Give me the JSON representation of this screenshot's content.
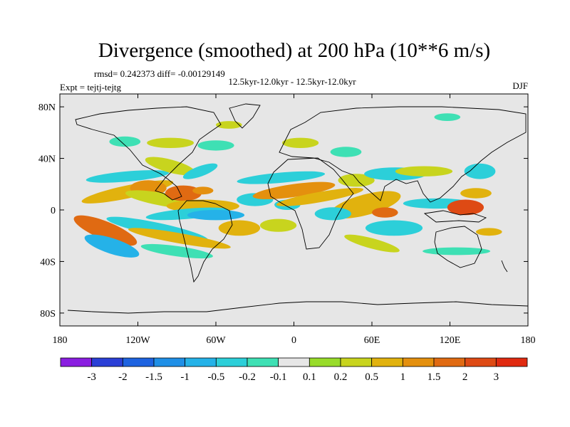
{
  "chart_data": {
    "type": "heatmap",
    "title": "Divergence (smoothed) at 200 hPa (10**6 m/s)",
    "stats": "rmsd= 0.242373 diff= -0.00129149",
    "periods": "12.5kyr-12.0kyr - 12.5kyr-12.0kyr",
    "experiment": "Expt = tejtj-tejtg",
    "season": "DJF",
    "x_ticks": [
      "180",
      "120W",
      "60W",
      "0",
      "60E",
      "120E",
      "180"
    ],
    "x_tick_values": [
      -180,
      -120,
      -60,
      0,
      60,
      120,
      180
    ],
    "y_ticks": [
      "80N",
      "40N",
      "0",
      "40S",
      "80S"
    ],
    "y_tick_values": [
      80,
      40,
      0,
      -40,
      -80
    ],
    "xlim": [
      -180,
      180
    ],
    "ylim": [
      -90,
      90
    ],
    "colorbar": {
      "labels": [
        "-3",
        "-2",
        "-1.5",
        "-1",
        "-0.5",
        "-0.2",
        "-0.1",
        "0.1",
        "0.2",
        "0.5",
        "1",
        "1.5",
        "2",
        "3"
      ],
      "colors": [
        "#8a1ee0",
        "#2b3fd6",
        "#1e63e0",
        "#1f8fe6",
        "#25b2e8",
        "#2ccfd9",
        "#3ee0b4",
        "#e6e6e6",
        "#98dc2a",
        "#c8d41e",
        "#e1b20e",
        "#e4900e",
        "#e06a12",
        "#de4a14",
        "#e02a10"
      ]
    },
    "anomalies": [
      {
        "lon": -145,
        "lat": -16,
        "rx": 26,
        "ry": 7,
        "rot": 22,
        "value": 1.5
      },
      {
        "lon": -140,
        "lat": -28,
        "rx": 22,
        "ry": 6,
        "rot": 18,
        "value": -1.0
      },
      {
        "lon": -128,
        "lat": 14,
        "rx": 36,
        "ry": 5,
        "rot": -12,
        "value": 0.5
      },
      {
        "lon": -128,
        "lat": 26,
        "rx": 32,
        "ry": 4,
        "rot": -5,
        "value": -0.5
      },
      {
        "lon": -112,
        "lat": 17,
        "rx": 14,
        "ry": 6,
        "rot": 0,
        "value": 1.0
      },
      {
        "lon": -100,
        "lat": 8,
        "rx": 30,
        "ry": 5,
        "rot": 10,
        "value": 0.2
      },
      {
        "lon": -85,
        "lat": 13,
        "rx": 14,
        "ry": 6,
        "rot": 0,
        "value": 1.5
      },
      {
        "lon": -70,
        "lat": 3,
        "rx": 28,
        "ry": 5,
        "rot": 0,
        "value": 0.5
      },
      {
        "lon": -82,
        "lat": -3,
        "rx": 32,
        "ry": 4,
        "rot": -5,
        "value": -0.5
      },
      {
        "lon": -60,
        "lat": -4,
        "rx": 22,
        "ry": 4,
        "rot": 0,
        "value": -1.0
      },
      {
        "lon": -105,
        "lat": -15,
        "rx": 40,
        "ry": 5,
        "rot": 12,
        "value": -0.5
      },
      {
        "lon": -88,
        "lat": -22,
        "rx": 40,
        "ry": 4,
        "rot": 10,
        "value": 0.5
      },
      {
        "lon": -90,
        "lat": -32,
        "rx": 28,
        "ry": 4,
        "rot": 8,
        "value": -0.2
      },
      {
        "lon": -95,
        "lat": 34,
        "rx": 20,
        "ry": 5,
        "rot": 15,
        "value": 0.2
      },
      {
        "lon": -72,
        "lat": 30,
        "rx": 14,
        "ry": 4,
        "rot": -20,
        "value": -0.5
      },
      {
        "lon": -70,
        "lat": 15,
        "rx": 8,
        "ry": 3,
        "rot": 0,
        "value": 1.0
      },
      {
        "lon": -30,
        "lat": 8,
        "rx": 14,
        "ry": 5,
        "rot": 0,
        "value": -0.5
      },
      {
        "lon": -42,
        "lat": -14,
        "rx": 16,
        "ry": 6,
        "rot": 0,
        "value": 0.5
      },
      {
        "lon": -12,
        "lat": -12,
        "rx": 14,
        "ry": 5,
        "rot": 0,
        "value": 0.2
      },
      {
        "lon": -5,
        "lat": 4,
        "rx": 10,
        "ry": 4,
        "rot": 0,
        "value": -0.5
      },
      {
        "lon": 0,
        "lat": 15,
        "rx": 32,
        "ry": 5,
        "rot": -8,
        "value": 1.0
      },
      {
        "lon": 20,
        "lat": 10,
        "rx": 34,
        "ry": 4,
        "rot": -10,
        "value": 0.5
      },
      {
        "lon": -10,
        "lat": 25,
        "rx": 34,
        "ry": 4,
        "rot": -5,
        "value": -0.5
      },
      {
        "lon": 48,
        "lat": 23,
        "rx": 14,
        "ry": 5,
        "rot": 0,
        "value": 0.2
      },
      {
        "lon": 78,
        "lat": 28,
        "rx": 24,
        "ry": 5,
        "rot": 0,
        "value": -0.5
      },
      {
        "lon": 55,
        "lat": 4,
        "rx": 28,
        "ry": 8,
        "rot": -15,
        "value": 0.5
      },
      {
        "lon": 70,
        "lat": -2,
        "rx": 10,
        "ry": 4,
        "rot": 0,
        "value": 1.5
      },
      {
        "lon": 30,
        "lat": -3,
        "rx": 14,
        "ry": 5,
        "rot": 0,
        "value": -0.5
      },
      {
        "lon": 77,
        "lat": -14,
        "rx": 22,
        "ry": 6,
        "rot": 0,
        "value": -0.5
      },
      {
        "lon": 60,
        "lat": -26,
        "rx": 22,
        "ry": 4,
        "rot": 15,
        "value": 0.2
      },
      {
        "lon": 110,
        "lat": 5,
        "rx": 26,
        "ry": 4,
        "rot": 0,
        "value": -0.5
      },
      {
        "lon": 132,
        "lat": 2,
        "rx": 14,
        "ry": 6,
        "rot": 0,
        "value": 2.0
      },
      {
        "lon": 140,
        "lat": 13,
        "rx": 12,
        "ry": 4,
        "rot": 0,
        "value": 0.5
      },
      {
        "lon": 143,
        "lat": 30,
        "rx": 12,
        "ry": 6,
        "rot": 0,
        "value": -0.5
      },
      {
        "lon": 100,
        "lat": 30,
        "rx": 22,
        "ry": 4,
        "rot": 0,
        "value": 0.2
      },
      {
        "lon": 150,
        "lat": -17,
        "rx": 10,
        "ry": 3,
        "rot": 0,
        "value": 0.5
      },
      {
        "lon": 125,
        "lat": -32,
        "rx": 26,
        "ry": 3,
        "rot": 0,
        "value": -0.2
      },
      {
        "lon": -130,
        "lat": 53,
        "rx": 12,
        "ry": 4,
        "rot": 0,
        "value": -0.2
      },
      {
        "lon": -95,
        "lat": 52,
        "rx": 18,
        "ry": 4,
        "rot": 0,
        "value": 0.2
      },
      {
        "lon": -60,
        "lat": 50,
        "rx": 14,
        "ry": 4,
        "rot": 0,
        "value": -0.2
      },
      {
        "lon": -50,
        "lat": 66,
        "rx": 10,
        "ry": 3,
        "rot": 0,
        "value": 0.2
      },
      {
        "lon": 5,
        "lat": 52,
        "rx": 14,
        "ry": 4,
        "rot": 0,
        "value": 0.2
      },
      {
        "lon": 40,
        "lat": 45,
        "rx": 12,
        "ry": 4,
        "rot": 0,
        "value": -0.2
      },
      {
        "lon": 118,
        "lat": 72,
        "rx": 10,
        "ry": 3,
        "rot": 0,
        "value": -0.2
      }
    ]
  }
}
